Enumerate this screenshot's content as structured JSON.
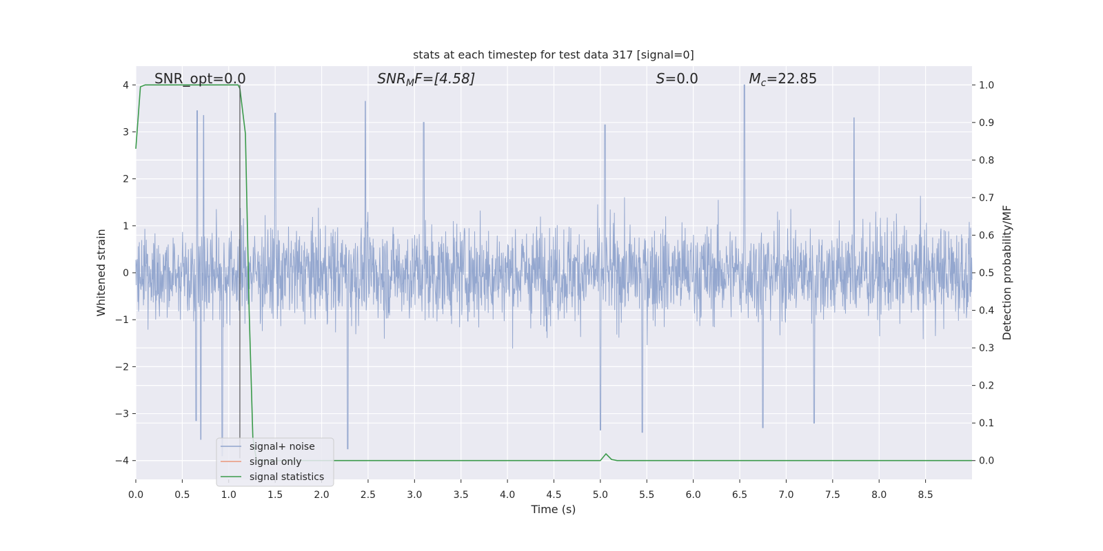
{
  "chart_data": {
    "type": "line",
    "title": "stats at each timestep for test data 317 [signal=0]",
    "xlabel": "Time (s)",
    "ylabel_left": "Whitened strain",
    "ylabel_right": "Detection probability/MF",
    "xlim": [
      0,
      9.0
    ],
    "ylim_left": [
      -4.4,
      4.4
    ],
    "ylim_right": [
      -0.05,
      1.05
    ],
    "x_ticks": [
      0.0,
      0.5,
      1.0,
      1.5,
      2.0,
      2.5,
      3.0,
      3.5,
      4.0,
      4.5,
      5.0,
      5.5,
      6.0,
      6.5,
      7.0,
      7.5,
      8.0,
      8.5
    ],
    "x_tick_labels": [
      "0.0",
      "0.5",
      "1.0",
      "1.5",
      "2.0",
      "2.5",
      "3.0",
      "3.5",
      "4.0",
      "4.5",
      "5.0",
      "5.5",
      "6.0",
      "6.5",
      "7.0",
      "7.5",
      "8.0",
      "8.5"
    ],
    "y_left_ticks": [
      -4,
      -3,
      -2,
      -1,
      0,
      1,
      2,
      3,
      4
    ],
    "y_left_tick_labels": [
      "−4",
      "−3",
      "−2",
      "−1",
      "0",
      "1",
      "2",
      "3",
      "4"
    ],
    "y_right_ticks": [
      0.0,
      0.1,
      0.2,
      0.3,
      0.4,
      0.5,
      0.6,
      0.7,
      0.8,
      0.9,
      1.0
    ],
    "y_right_tick_labels": [
      "0.0",
      "0.1",
      "0.2",
      "0.3",
      "0.4",
      "0.5",
      "0.6",
      "0.7",
      "0.8",
      "0.9",
      "1.0"
    ],
    "grid": true,
    "legend_position": "lower-left",
    "annotations": [
      {
        "id": "snr-opt",
        "text": "SNR_opt=0.0",
        "x": 0.2
      },
      {
        "id": "snr-mf",
        "math_main": "SNR",
        "math_sub": "M",
        "suffix": "F=[4.58]",
        "x": 2.6
      },
      {
        "id": "s-stat",
        "math_main": "S",
        "suffix": "=0.0",
        "x": 5.6
      },
      {
        "id": "mc",
        "math_main": "M",
        "math_sub": "c",
        "suffix": "=22.85",
        "x": 6.6
      }
    ],
    "marker_line_x": 1.12,
    "series": [
      {
        "name": "signal+ noise",
        "color": "#8fa3cc",
        "description_note": "whitened strain noise, spans roughly -3.7 to 4.0",
        "peaks_x": [
          0.66,
          0.73,
          1.5,
          2.47,
          3.1,
          5.05,
          6.55,
          7.73
        ],
        "peaks_y": [
          3.45,
          3.35,
          3.4,
          3.65,
          3.2,
          3.15,
          4.0,
          3.3
        ],
        "troughs_x": [
          0.65,
          0.7,
          0.93,
          2.28,
          5.0,
          5.45,
          6.75,
          7.3
        ],
        "troughs_y": [
          -3.15,
          -3.55,
          -3.9,
          -3.75,
          -3.35,
          -3.4,
          -3.3,
          -3.2
        ]
      },
      {
        "name": "signal only",
        "color": "#e9967a",
        "x": [],
        "y": []
      },
      {
        "name": "signal statistics",
        "color": "#3a9a4a",
        "x": [
          0.0,
          0.05,
          0.1,
          0.2,
          1.1,
          1.12,
          1.18,
          1.22,
          1.26,
          1.3,
          2.0,
          4.0,
          5.0,
          5.06,
          5.12,
          5.18,
          6.0,
          9.0
        ],
        "y": [
          0.83,
          0.995,
          1.0,
          1.0,
          1.0,
          0.99,
          0.87,
          0.4,
          0.06,
          0.0,
          0.0,
          0.0,
          0.0,
          0.018,
          0.003,
          0.0,
          0.0,
          0.0
        ]
      }
    ]
  }
}
